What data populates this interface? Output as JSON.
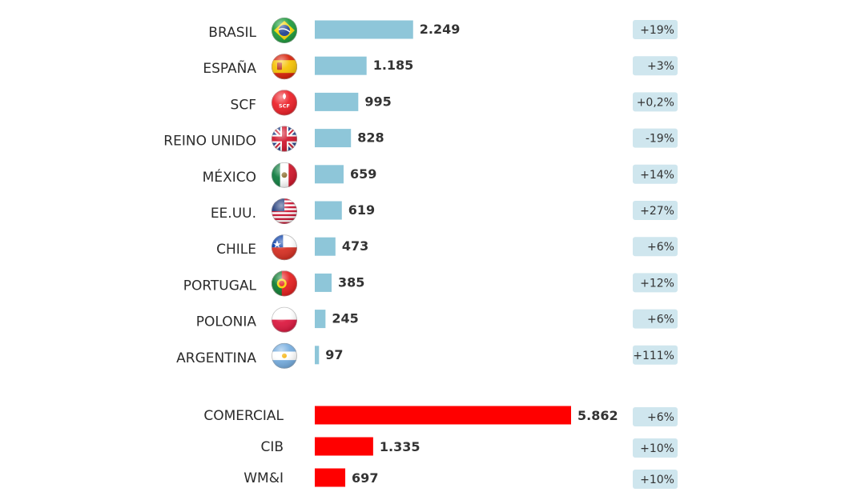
{
  "colors": {
    "country_bar": "#8ec6d9",
    "segment_bar": "#ff0000",
    "badge_bg": "#cfe6ee",
    "text": "#2b2b2b"
  },
  "chart_data": [
    {
      "type": "bar",
      "orientation": "horizontal",
      "categories": [
        "BRASIL",
        "ESPAÑA",
        "SCF",
        "REINO UNIDO",
        "MÉXICO",
        "EE.UU.",
        "CHILE",
        "PORTUGAL",
        "POLONIA",
        "ARGENTINA"
      ],
      "values": [
        2249,
        1185,
        995,
        828,
        659,
        619,
        473,
        385,
        245,
        97
      ],
      "value_labels": [
        "2.249",
        "1.185",
        "995",
        "828",
        "659",
        "619",
        "473",
        "385",
        "245",
        "97"
      ],
      "changes": [
        "+19%",
        "+3%",
        "+0,2%",
        "-19%",
        "+14%",
        "+27%",
        "+6%",
        "+12%",
        "+6%",
        "+111%"
      ],
      "icons": [
        "brazil-flag-icon",
        "spain-flag-icon",
        "scf-logo-icon",
        "uk-flag-icon",
        "mexico-flag-icon",
        "usa-flag-icon",
        "chile-flag-icon",
        "portugal-flag-icon",
        "poland-flag-icon",
        "argentina-flag-icon"
      ],
      "scf_icon_text": "SCF",
      "color": "#8ec6d9"
    },
    {
      "type": "bar",
      "orientation": "horizontal",
      "categories": [
        "COMERCIAL",
        "CIB",
        "WM&I"
      ],
      "values": [
        5862,
        1335,
        697
      ],
      "value_labels": [
        "5.862",
        "1.335",
        "697"
      ],
      "changes": [
        "+6%",
        "+10%",
        "+10%"
      ],
      "color": "#ff0000"
    }
  ]
}
